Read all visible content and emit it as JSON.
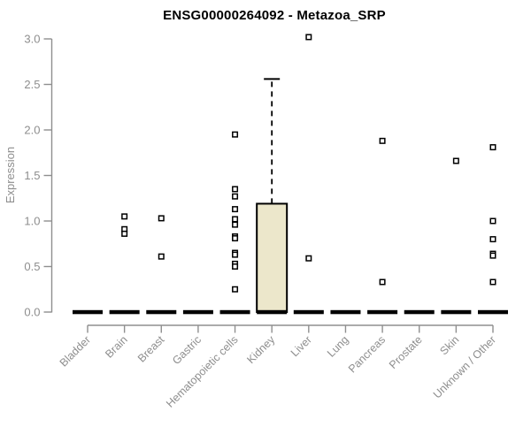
{
  "chart_data": {
    "type": "boxplot",
    "title": "ENSG00000264092 - Metazoa_SRP",
    "ylabel": "Expression",
    "xlabel": "",
    "ylim": [
      0,
      3
    ],
    "grid": false,
    "legend": null,
    "yticks": [
      0,
      0.5,
      1,
      1.5,
      2,
      2.5,
      3
    ],
    "ytick_labels": [
      "0.0",
      "0.5",
      "1.0",
      "1.5",
      "2.0",
      "2.5",
      "3.0"
    ],
    "categories": [
      "Bladder",
      "Brain",
      "Breast",
      "Gastric",
      "Hematopoietic cells",
      "Kidney",
      "Liver",
      "Lung",
      "Pancreas",
      "Prostate",
      "Skin",
      "Unknown / Other"
    ],
    "boxes": [
      {
        "category": "Bladder",
        "q1": 0,
        "median": 0,
        "q3": 0,
        "whisker_low": 0,
        "whisker_high": 0,
        "outliers": []
      },
      {
        "category": "Brain",
        "q1": 0,
        "median": 0,
        "q3": 0,
        "whisker_low": 0,
        "whisker_high": 0,
        "outliers": [
          1.05,
          0.91,
          0.86
        ]
      },
      {
        "category": "Breast",
        "q1": 0,
        "median": 0,
        "q3": 0,
        "whisker_low": 0,
        "whisker_high": 0,
        "outliers": [
          1.03,
          0.61
        ]
      },
      {
        "category": "Gastric",
        "q1": 0,
        "median": 0,
        "q3": 0,
        "whisker_low": 0,
        "whisker_high": 0,
        "outliers": []
      },
      {
        "category": "Hematopoietic cells",
        "q1": 0,
        "median": 0,
        "q3": 0,
        "whisker_low": 0,
        "whisker_high": 0,
        "outliers": [
          1.95,
          1.35,
          1.27,
          1.13,
          1.02,
          0.96,
          0.83,
          0.81,
          0.65,
          0.63,
          0.53,
          0.5,
          0.25
        ]
      },
      {
        "category": "Kidney",
        "q1": 0,
        "median": 0,
        "q3": 1.19,
        "whisker_low": 0,
        "whisker_high": 2.56,
        "outliers": []
      },
      {
        "category": "Liver",
        "q1": 0,
        "median": 0,
        "q3": 0,
        "whisker_low": 0,
        "whisker_high": 0,
        "outliers": [
          3.02,
          0.59
        ]
      },
      {
        "category": "Lung",
        "q1": 0,
        "median": 0,
        "q3": 0,
        "whisker_low": 0,
        "whisker_high": 0,
        "outliers": []
      },
      {
        "category": "Pancreas",
        "q1": 0,
        "median": 0,
        "q3": 0,
        "whisker_low": 0,
        "whisker_high": 0,
        "outliers": [
          1.88,
          0.33
        ]
      },
      {
        "category": "Prostate",
        "q1": 0,
        "median": 0,
        "q3": 0,
        "whisker_low": 0,
        "whisker_high": 0,
        "outliers": []
      },
      {
        "category": "Skin",
        "q1": 0,
        "median": 0,
        "q3": 0,
        "whisker_low": 0,
        "whisker_high": 0,
        "outliers": [
          1.66
        ]
      },
      {
        "category": "Unknown / Other",
        "q1": 0,
        "median": 0,
        "q3": 0,
        "whisker_low": 0,
        "whisker_high": 0,
        "outliers": [
          1.81,
          1.0,
          0.8,
          0.64,
          0.62,
          0.33
        ]
      }
    ],
    "colors": {
      "box_fill": "#ece7cb",
      "box_border": "#000000",
      "median": "#000000",
      "outlier": "#000000",
      "axis": "#8f8f8f",
      "tick_text": "#8e8e8e",
      "title_text": "#000000",
      "background": "#ffffff"
    }
  }
}
